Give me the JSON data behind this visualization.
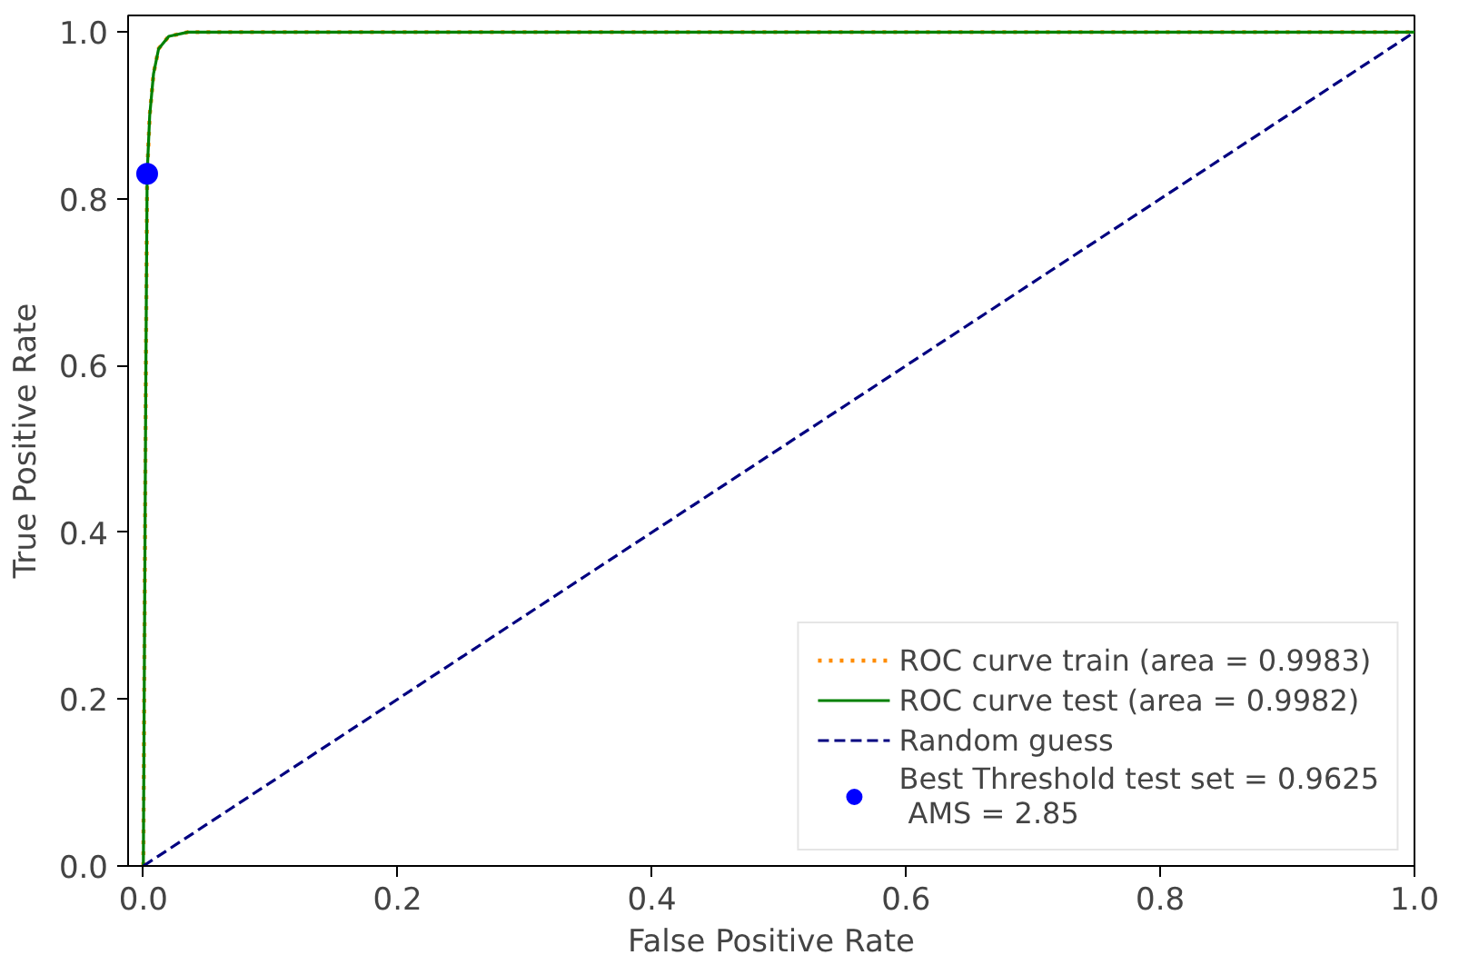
{
  "chart_data": {
    "type": "line",
    "xlabel": "False Positive Rate",
    "ylabel": "True Positive Rate",
    "xlim": [
      -0.012,
      1.0
    ],
    "ylim": [
      0,
      1.02
    ],
    "xticks": [
      {
        "value": 0,
        "label": "0.0"
      },
      {
        "value": 0.2,
        "label": "0.2"
      },
      {
        "value": 0.4,
        "label": "0.4"
      },
      {
        "value": 0.6,
        "label": "0.6"
      },
      {
        "value": 0.8,
        "label": "0.8"
      },
      {
        "value": 1,
        "label": "1.0"
      }
    ],
    "yticks": [
      {
        "value": 0,
        "label": "0.0"
      },
      {
        "value": 0.2,
        "label": "0.2"
      },
      {
        "value": 0.4,
        "label": "0.4"
      },
      {
        "value": 0.6,
        "label": "0.6"
      },
      {
        "value": 0.8,
        "label": "0.8"
      },
      {
        "value": 1,
        "label": "1.0"
      }
    ],
    "grid": false,
    "legend": "bottom right",
    "series": [
      {
        "name": "ROC curve train (area = 0.9983)",
        "color": "#ff8c00",
        "line_style": "dotted",
        "x": [
          0,
          0.001,
          0.002,
          0.003,
          0.005,
          0.008,
          0.012,
          0.02,
          0.035,
          0.5,
          1
        ],
        "values": [
          0,
          0.3,
          0.6,
          0.83,
          0.9,
          0.95,
          0.98,
          0.995,
          1.0,
          1.0,
          1.0
        ]
      },
      {
        "name": "ROC curve test (area = 0.9982)",
        "color": "#008000",
        "line_style": "solid",
        "x": [
          0,
          0.001,
          0.002,
          0.003,
          0.005,
          0.008,
          0.012,
          0.02,
          0.035,
          0.5,
          1
        ],
        "values": [
          0,
          0.3,
          0.6,
          0.83,
          0.9,
          0.95,
          0.98,
          0.995,
          1.0,
          1.0,
          1.0
        ]
      },
      {
        "name": "Random guess",
        "color": "#000080",
        "line_style": "dashed",
        "x": [
          0,
          1
        ],
        "values": [
          0,
          1
        ]
      },
      {
        "name": "Best Threshold test set = 0.9625\n AMS = 2.85",
        "type": "scatter",
        "marker": "circle",
        "color": "#0000ff",
        "x": [
          0.003
        ],
        "values": [
          0.83
        ]
      }
    ]
  }
}
